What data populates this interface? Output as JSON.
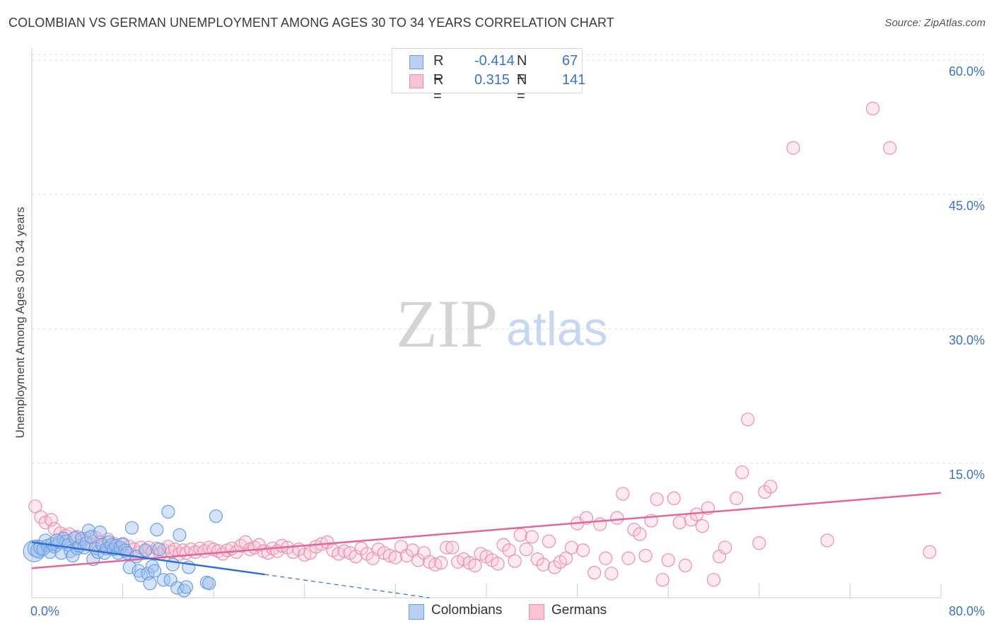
{
  "header": {
    "title": "COLOMBIAN VS GERMAN UNEMPLOYMENT AMONG AGES 30 TO 34 YEARS CORRELATION CHART",
    "source": "Source: ZipAtlas.com"
  },
  "watermark": {
    "zip": "ZIP",
    "atlas": "atlas"
  },
  "legend": {
    "rows": [
      {
        "r_label": "R =",
        "r_value": "-0.414",
        "n_label": "N =",
        "n_value": "67",
        "fill": "#b9d0f3",
        "stroke": "#6d9fe0"
      },
      {
        "r_label": "R =",
        "r_value": "0.315",
        "n_label": "N =",
        "n_value": "141",
        "fill": "#f9c4d4",
        "stroke": "#ec8fae"
      }
    ]
  },
  "bottom_legend": {
    "colombians": "Colombians",
    "germans": "Germans"
  },
  "colors": {
    "blue": "#6d9fe0",
    "blue_fill": "rgba(160,192,240,0.45)",
    "blue_line": "#2f6fd0",
    "pink": "#ec8fae",
    "pink_fill": "rgba(248,196,212,0.35)",
    "pink_line": "#e0689a",
    "axis_text": "#3b73c9",
    "grid": "#dcdcdc"
  },
  "chart_data": {
    "type": "scatter",
    "title": "COLOMBIAN VS GERMAN UNEMPLOYMENT AMONG AGES 30 TO 34 YEARS CORRELATION CHART",
    "xlabel": "",
    "ylabel": "Unemployment Among Ages 30 to 34 years",
    "xlim": [
      0,
      80
    ],
    "ylim": [
      0,
      60
    ],
    "x_tick_labels": [
      {
        "value": 0,
        "label": "0.0%"
      },
      {
        "value": 80,
        "label": "80.0%"
      }
    ],
    "y_tick_labels": [
      {
        "value": 15,
        "label": "15.0%"
      },
      {
        "value": 30,
        "label": "30.0%"
      },
      {
        "value": 45,
        "label": "45.0%"
      },
      {
        "value": 60,
        "label": "60.0%"
      }
    ],
    "x_minor_ticks": [
      0,
      8,
      16,
      24,
      32,
      40,
      48,
      56,
      64,
      72,
      80
    ],
    "series": [
      {
        "name": "Colombians",
        "r": -0.414,
        "n": 67,
        "trend": {
          "x0": 0,
          "y0": 6.2,
          "x1": 20.5,
          "y1": 2.6,
          "dash_x1": 35,
          "dash_y1": 0.0
        },
        "points": [
          [
            0.2,
            5.2,
            15
          ],
          [
            0.4,
            5.5,
            12
          ],
          [
            0.6,
            5.3,
            11
          ],
          [
            0.8,
            5.6,
            10
          ],
          [
            1.0,
            5.4,
            9
          ],
          [
            1.2,
            6.4,
            9
          ],
          [
            1.4,
            5.8,
            9
          ],
          [
            1.6,
            5.1,
            9
          ],
          [
            1.8,
            6.0,
            9
          ],
          [
            2.0,
            5.7,
            9
          ],
          [
            2.2,
            5.9,
            9
          ],
          [
            2.4,
            6.2,
            9
          ],
          [
            2.6,
            5.0,
            9
          ],
          [
            2.8,
            6.6,
            9
          ],
          [
            3.0,
            6.3,
            9
          ],
          [
            3.2,
            5.9,
            9
          ],
          [
            3.4,
            5.2,
            9
          ],
          [
            3.6,
            4.7,
            9
          ],
          [
            3.8,
            6.7,
            9
          ],
          [
            4.0,
            5.5,
            9
          ],
          [
            4.2,
            5.8,
            9
          ],
          [
            4.4,
            6.6,
            9
          ],
          [
            4.6,
            5.6,
            9
          ],
          [
            4.8,
            6.1,
            9
          ],
          [
            5.0,
            7.5,
            9
          ],
          [
            5.2,
            6.8,
            9
          ],
          [
            5.4,
            4.3,
            9
          ],
          [
            5.6,
            5.5,
            9
          ],
          [
            5.8,
            5.1,
            9
          ],
          [
            6.0,
            7.3,
            9
          ],
          [
            6.2,
            5.9,
            9
          ],
          [
            6.4,
            5.0,
            9
          ],
          [
            6.6,
            5.5,
            9
          ],
          [
            6.8,
            6.2,
            9
          ],
          [
            7.0,
            5.9,
            9
          ],
          [
            7.2,
            5.4,
            9
          ],
          [
            7.4,
            5.8,
            9
          ],
          [
            7.6,
            5.0,
            9
          ],
          [
            7.8,
            5.6,
            9
          ],
          [
            8.0,
            6.0,
            9
          ],
          [
            8.2,
            5.3,
            9
          ],
          [
            8.4,
            5.0,
            9
          ],
          [
            8.6,
            3.4,
            9
          ],
          [
            8.8,
            7.8,
            9
          ],
          [
            9.2,
            4.6,
            9
          ],
          [
            9.4,
            3.0,
            9
          ],
          [
            9.6,
            2.5,
            9
          ],
          [
            10.0,
            5.3,
            9
          ],
          [
            10.2,
            2.7,
            9
          ],
          [
            10.4,
            1.6,
            9
          ],
          [
            10.6,
            3.5,
            9
          ],
          [
            10.8,
            3.0,
            9
          ],
          [
            11.0,
            7.6,
            9
          ],
          [
            11.2,
            5.4,
            9
          ],
          [
            11.6,
            2.0,
            9
          ],
          [
            12.0,
            9.6,
            9
          ],
          [
            12.2,
            2.0,
            9
          ],
          [
            12.4,
            3.7,
            9
          ],
          [
            12.8,
            1.1,
            9
          ],
          [
            13.0,
            7.0,
            9
          ],
          [
            13.4,
            0.8,
            9
          ],
          [
            13.6,
            1.2,
            9
          ],
          [
            13.8,
            3.4,
            9
          ],
          [
            15.4,
            1.7,
            9
          ],
          [
            15.6,
            1.6,
            9
          ],
          [
            16.2,
            9.1,
            9
          ],
          [
            2.2,
            6.4,
            9
          ]
        ]
      },
      {
        "name": "Germans",
        "r": 0.315,
        "n": 141,
        "trend": {
          "x0": 0,
          "y0": 3.3,
          "x1": 80,
          "y1": 11.7
        },
        "points": [
          [
            0.3,
            10.2,
            9
          ],
          [
            0.8,
            9.0,
            9
          ],
          [
            1.2,
            8.4,
            9
          ],
          [
            1.7,
            8.7,
            9
          ],
          [
            2.0,
            7.7,
            9
          ],
          [
            2.5,
            7.2,
            9
          ],
          [
            3.0,
            6.9,
            9
          ],
          [
            3.3,
            7.1,
            9
          ],
          [
            3.7,
            6.6,
            9
          ],
          [
            4.0,
            6.8,
            9
          ],
          [
            4.4,
            6.3,
            9
          ],
          [
            4.8,
            6.6,
            9
          ],
          [
            5.2,
            6.0,
            9
          ],
          [
            5.6,
            6.7,
            9
          ],
          [
            6.0,
            6.2,
            9
          ],
          [
            6.3,
            5.8,
            9
          ],
          [
            6.7,
            6.5,
            9
          ],
          [
            7.0,
            5.6,
            9
          ],
          [
            7.3,
            6.0,
            9
          ],
          [
            7.7,
            5.5,
            9
          ],
          [
            8.0,
            5.9,
            9
          ],
          [
            8.3,
            5.2,
            9
          ],
          [
            8.6,
            5.7,
            9
          ],
          [
            9.0,
            5.4,
            9
          ],
          [
            9.3,
            5.0,
            9
          ],
          [
            9.6,
            5.6,
            9
          ],
          [
            10.0,
            5.3,
            9
          ],
          [
            10.3,
            5.6,
            9
          ],
          [
            10.6,
            5.1,
            9
          ],
          [
            11.0,
            5.5,
            9
          ],
          [
            11.3,
            4.9,
            9
          ],
          [
            11.6,
            5.3,
            9
          ],
          [
            12.0,
            5.7,
            9
          ],
          [
            12.3,
            5.1,
            9
          ],
          [
            12.6,
            5.4,
            9
          ],
          [
            13.0,
            4.9,
            9
          ],
          [
            13.3,
            5.3,
            9
          ],
          [
            13.6,
            5.0,
            9
          ],
          [
            14.0,
            5.4,
            9
          ],
          [
            14.4,
            5.1,
            9
          ],
          [
            14.8,
            5.5,
            9
          ],
          [
            15.2,
            5.2,
            9
          ],
          [
            15.6,
            5.6,
            9
          ],
          [
            16.0,
            5.4,
            9
          ],
          [
            16.4,
            5.2,
            9
          ],
          [
            16.8,
            4.9,
            9
          ],
          [
            17.2,
            5.3,
            9
          ],
          [
            17.6,
            5.5,
            9
          ],
          [
            18.0,
            5.1,
            9
          ],
          [
            18.4,
            5.8,
            9
          ],
          [
            18.8,
            6.2,
            9
          ],
          [
            19.2,
            5.4,
            9
          ],
          [
            19.6,
            5.6,
            9
          ],
          [
            20.0,
            5.9,
            9
          ],
          [
            20.4,
            5.2,
            9
          ],
          [
            20.8,
            5.0,
            9
          ],
          [
            21.2,
            5.5,
            9
          ],
          [
            21.6,
            5.2,
            9
          ],
          [
            22.0,
            5.8,
            9
          ],
          [
            22.5,
            5.6,
            9
          ],
          [
            23.0,
            5.1,
            9
          ],
          [
            23.5,
            5.4,
            9
          ],
          [
            24.0,
            4.8,
            9
          ],
          [
            24.5,
            5.0,
            9
          ],
          [
            25.0,
            5.7,
            9
          ],
          [
            25.5,
            6.0,
            9
          ],
          [
            26.0,
            6.2,
            9
          ],
          [
            26.5,
            5.3,
            9
          ],
          [
            27.0,
            4.9,
            9
          ],
          [
            27.5,
            5.2,
            9
          ],
          [
            28.0,
            5.0,
            9
          ],
          [
            28.5,
            4.6,
            9
          ],
          [
            29.0,
            5.5,
            9
          ],
          [
            29.5,
            4.9,
            9
          ],
          [
            30.0,
            4.4,
            9
          ],
          [
            30.5,
            5.4,
            9
          ],
          [
            31.0,
            5.0,
            9
          ],
          [
            31.5,
            4.7,
            9
          ],
          [
            32.0,
            4.5,
            9
          ],
          [
            32.5,
            5.7,
            9
          ],
          [
            33.0,
            4.7,
            9
          ],
          [
            33.5,
            5.3,
            9
          ],
          [
            34.0,
            4.2,
            9
          ],
          [
            34.5,
            5.0,
            9
          ],
          [
            35.0,
            4.0,
            9
          ],
          [
            35.5,
            3.7,
            9
          ],
          [
            36.0,
            3.9,
            9
          ],
          [
            36.5,
            5.6,
            9
          ],
          [
            37.0,
            5.6,
            9
          ],
          [
            37.5,
            4.0,
            9
          ],
          [
            38.0,
            4.3,
            9
          ],
          [
            38.5,
            3.9,
            9
          ],
          [
            39.0,
            3.6,
            9
          ],
          [
            39.5,
            4.9,
            9
          ],
          [
            40.0,
            4.6,
            9
          ],
          [
            40.5,
            4.2,
            9
          ],
          [
            41.0,
            3.8,
            9
          ],
          [
            41.5,
            5.9,
            9
          ],
          [
            42.0,
            5.3,
            9
          ],
          [
            42.5,
            4.1,
            9
          ],
          [
            43.0,
            7.0,
            9
          ],
          [
            43.5,
            5.4,
            9
          ],
          [
            44.0,
            6.8,
            9
          ],
          [
            44.5,
            4.3,
            9
          ],
          [
            45.0,
            3.7,
            9
          ],
          [
            45.5,
            6.3,
            9
          ],
          [
            46.0,
            3.4,
            9
          ],
          [
            46.5,
            4.0,
            9
          ],
          [
            47.0,
            4.4,
            9
          ],
          [
            47.5,
            5.6,
            9
          ],
          [
            48.0,
            8.3,
            9
          ],
          [
            48.5,
            5.3,
            9
          ],
          [
            48.8,
            8.9,
            9
          ],
          [
            49.5,
            2.8,
            9
          ],
          [
            50.0,
            8.2,
            9
          ],
          [
            50.5,
            4.4,
            9
          ],
          [
            51.0,
            2.7,
            9
          ],
          [
            51.5,
            8.9,
            9
          ],
          [
            52.0,
            11.6,
            9
          ],
          [
            52.5,
            4.4,
            9
          ],
          [
            53.0,
            7.6,
            9
          ],
          [
            53.5,
            7.1,
            9
          ],
          [
            54.0,
            4.7,
            9
          ],
          [
            54.5,
            8.6,
            9
          ],
          [
            55.0,
            11.0,
            9
          ],
          [
            55.5,
            2.0,
            9
          ],
          [
            56.0,
            4.2,
            9
          ],
          [
            56.5,
            11.1,
            9
          ],
          [
            57.0,
            8.4,
            9
          ],
          [
            57.5,
            3.6,
            9
          ],
          [
            58.0,
            8.7,
            9
          ],
          [
            58.5,
            9.3,
            9
          ],
          [
            59.0,
            8.0,
            9
          ],
          [
            59.5,
            10.0,
            9
          ],
          [
            60.0,
            2.0,
            9
          ],
          [
            60.5,
            4.6,
            9
          ],
          [
            61.0,
            5.6,
            9
          ],
          [
            62.0,
            11.1,
            9
          ],
          [
            62.5,
            14.0,
            9
          ],
          [
            63.0,
            19.9,
            9
          ],
          [
            64.0,
            6.1,
            9
          ],
          [
            64.5,
            11.8,
            9
          ],
          [
            65.0,
            12.4,
            9
          ],
          [
            67.0,
            50.2,
            9
          ],
          [
            70.0,
            6.4,
            9
          ],
          [
            74.0,
            54.6,
            9
          ],
          [
            75.5,
            50.2,
            9
          ],
          [
            79.0,
            5.1,
            9
          ]
        ]
      }
    ]
  }
}
